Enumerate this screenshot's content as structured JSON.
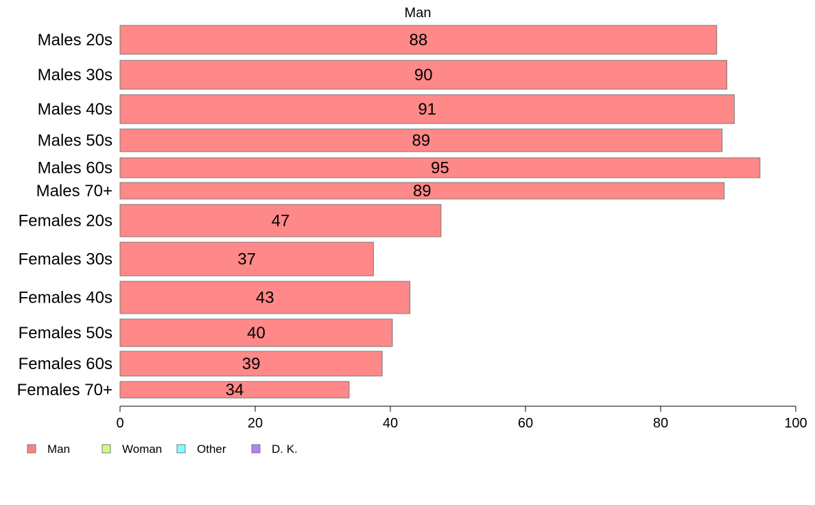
{
  "chart_data": {
    "type": "bar",
    "orientation": "horizontal",
    "title": "Man",
    "categories": [
      "Males 20s",
      "Males 30s",
      "Males 40s",
      "Males 50s",
      "Males 60s",
      "Males 70+",
      "Females 20s",
      "Females 30s",
      "Females 40s",
      "Females 50s",
      "Females 60s",
      "Females 70+"
    ],
    "values": [
      88.3,
      89.8,
      90.9,
      89.1,
      94.7,
      89.4,
      47.5,
      37.5,
      42.9,
      40.3,
      38.8,
      33.9
    ],
    "value_labels": [
      "88",
      "90",
      "91",
      "89",
      "95",
      "89",
      "47",
      "37",
      "43",
      "40",
      "39",
      "34"
    ],
    "xlim": [
      0,
      100
    ],
    "xticks": [
      "0",
      "20",
      "40",
      "60",
      "80",
      "100"
    ],
    "bar_color": "#FF8888",
    "bar_border_color": "#777777",
    "legend": {
      "position": "bottom-left",
      "items": [
        {
          "label": "Man",
          "color": "#FF8080"
        },
        {
          "label": "Woman",
          "color": "#CCFF80"
        },
        {
          "label": "Other",
          "color": "#80FFFF"
        },
        {
          "label": "D. K.",
          "color": "#B380FF"
        }
      ]
    }
  }
}
